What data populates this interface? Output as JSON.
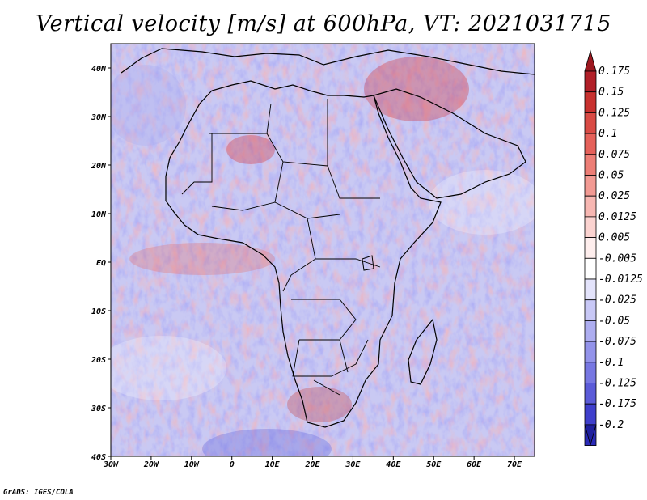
{
  "title": "Vertical velocity [m/s] at 600hPa, VT: 2021031715",
  "footer": "GrADS: IGES/COLA",
  "map": {
    "lon_range": [
      -30,
      75
    ],
    "lat_range": [
      -40,
      45
    ],
    "x_ticks": [
      {
        "lon": -30,
        "label": "30W"
      },
      {
        "lon": -20,
        "label": "20W"
      },
      {
        "lon": -10,
        "label": "10W"
      },
      {
        "lon": 0,
        "label": "0"
      },
      {
        "lon": 10,
        "label": "10E"
      },
      {
        "lon": 20,
        "label": "20E"
      },
      {
        "lon": 30,
        "label": "30E"
      },
      {
        "lon": 40,
        "label": "40E"
      },
      {
        "lon": 50,
        "label": "50E"
      },
      {
        "lon": 60,
        "label": "60E"
      },
      {
        "lon": 70,
        "label": "70E"
      }
    ],
    "y_ticks": [
      {
        "lat": 40,
        "label": "40N"
      },
      {
        "lat": 30,
        "label": "30N"
      },
      {
        "lat": 20,
        "label": "20N"
      },
      {
        "lat": 10,
        "label": "10N"
      },
      {
        "lat": 0,
        "label": "EQ"
      },
      {
        "lat": -10,
        "label": "10S"
      },
      {
        "lat": -20,
        "label": "20S"
      },
      {
        "lat": -30,
        "label": "30S"
      },
      {
        "lat": -40,
        "label": "40S"
      }
    ]
  },
  "colorbar": {
    "levels": [
      {
        "label": "0.175",
        "color": "#b11f28"
      },
      {
        "label": "0.15",
        "color": "#c8312f"
      },
      {
        "label": "0.125",
        "color": "#d94b45"
      },
      {
        "label": "0.1",
        "color": "#e5615a"
      },
      {
        "label": "0.075",
        "color": "#ed7e76"
      },
      {
        "label": "0.05",
        "color": "#f29a93"
      },
      {
        "label": "0.025",
        "color": "#f7b7b2"
      },
      {
        "label": "0.0125",
        "color": "#fbd3d0"
      },
      {
        "label": "0.005",
        "color": "#feeeed"
      },
      {
        "label": "-0.005",
        "color": "#ffffff"
      },
      {
        "label": "-0.0125",
        "color": "#e3e3fb"
      },
      {
        "label": "-0.025",
        "color": "#c8c8f6"
      },
      {
        "label": "-0.05",
        "color": "#adadf0"
      },
      {
        "label": "-0.075",
        "color": "#9393ea"
      },
      {
        "label": "-0.1",
        "color": "#7777e2"
      },
      {
        "label": "-0.125",
        "color": "#5b5bd8"
      },
      {
        "label": "-0.175",
        "color": "#3f3fcc"
      },
      {
        "label": "-0.2",
        "color": "#2a2ab8"
      }
    ],
    "top_arrow_color": "#9c1820",
    "bottom_arrow_color": "#1f1f9e"
  }
}
